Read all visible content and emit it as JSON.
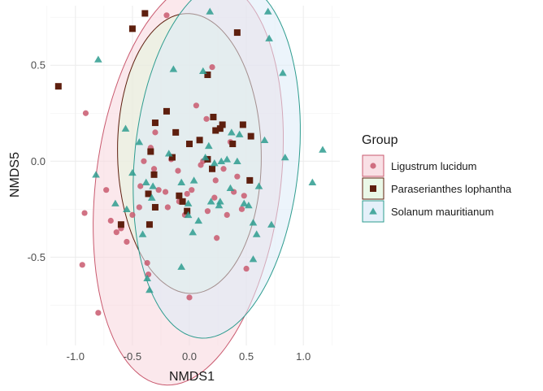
{
  "chart_data": {
    "type": "scatter",
    "xlabel": "NMDS1",
    "ylabel": "NMDS5",
    "xlim": [
      -1.22,
      1.32
    ],
    "ylim": [
      -0.96,
      0.81
    ],
    "x_ticks": [
      -1.0,
      -0.5,
      0.0,
      0.5,
      1.0
    ],
    "x_tick_labels": [
      "-1.0",
      "-0.5",
      "0.0",
      "0.5",
      "1.0"
    ],
    "y_ticks": [
      -0.5,
      0.0,
      0.5
    ],
    "y_tick_labels": [
      "-0.5",
      "0.0",
      "0.5"
    ],
    "grid": true,
    "legend": {
      "title": "Group",
      "position": "right"
    },
    "series": [
      {
        "name": "Ligustrum lucidum",
        "marker": "circle",
        "color": "#C9596E",
        "fill": "#F7D6DC",
        "ellipse": {
          "cx": -0.01,
          "cy": -0.11,
          "rx": 1.09,
          "ry": 0.79,
          "angle_deg": 69
        },
        "points": [
          [
            -0.91,
            0.25
          ],
          [
            -0.92,
            -0.27
          ],
          [
            -0.94,
            -0.54
          ],
          [
            -0.8,
            -0.79
          ],
          [
            -0.73,
            -0.15
          ],
          [
            -0.69,
            -0.31
          ],
          [
            -0.64,
            -0.37
          ],
          [
            -0.6,
            -0.35
          ],
          [
            -0.55,
            -0.42
          ],
          [
            -0.5,
            -0.28
          ],
          [
            -0.44,
            -0.24
          ],
          [
            -0.43,
            -0.13
          ],
          [
            -0.4,
            0.0
          ],
          [
            -0.37,
            -0.53
          ],
          [
            -0.36,
            -0.59
          ],
          [
            -0.34,
            0.07
          ],
          [
            -0.31,
            -0.04
          ],
          [
            -0.3,
            0.15
          ],
          [
            -0.27,
            -0.15
          ],
          [
            -0.21,
            -0.16
          ],
          [
            -0.19,
            -0.24
          ],
          [
            -0.16,
            0.01
          ],
          [
            -0.1,
            -0.05
          ],
          [
            -0.09,
            -0.21
          ],
          [
            -0.04,
            -0.28
          ],
          [
            -0.02,
            -0.17
          ],
          [
            0.0,
            -0.71
          ],
          [
            0.02,
            -0.15
          ],
          [
            0.06,
            0.29
          ],
          [
            0.1,
            -0.02
          ],
          [
            0.12,
            0.0
          ],
          [
            0.15,
            0.22
          ],
          [
            0.16,
            -0.26
          ],
          [
            0.2,
            0.49
          ],
          [
            0.22,
            -0.19
          ],
          [
            0.23,
            -0.1
          ],
          [
            0.24,
            -0.4
          ],
          [
            0.3,
            -0.04
          ],
          [
            0.33,
            -0.28
          ],
          [
            0.36,
            0.1
          ],
          [
            0.39,
            -0.16
          ],
          [
            0.42,
            -0.08
          ],
          [
            0.46,
            -0.25
          ],
          [
            0.48,
            -0.18
          ],
          [
            0.5,
            -0.56
          ],
          [
            -0.2,
            0.76
          ]
        ]
      },
      {
        "name": "Paraserianthes lophantha",
        "marker": "square",
        "color": "#5E1F0E",
        "fill": "#E3F5DF",
        "ellipse": {
          "cx": 0.0,
          "cy": 0.04,
          "rx": 0.73,
          "ry": 0.63,
          "angle_deg": 95
        },
        "points": [
          [
            -1.15,
            0.39
          ],
          [
            -0.5,
            0.69
          ],
          [
            -0.39,
            0.77
          ],
          [
            -0.6,
            -0.33
          ],
          [
            -0.35,
            -0.33
          ],
          [
            -0.36,
            -0.17
          ],
          [
            -0.3,
            -0.24
          ],
          [
            -0.34,
            0.05
          ],
          [
            -0.31,
            -0.07
          ],
          [
            -0.3,
            0.2
          ],
          [
            -0.2,
            0.26
          ],
          [
            -0.15,
            0.02
          ],
          [
            -0.12,
            0.15
          ],
          [
            -0.09,
            -0.18
          ],
          [
            -0.06,
            -0.21
          ],
          [
            -0.02,
            -0.26
          ],
          [
            0.0,
            0.09
          ],
          [
            0.09,
            0.11
          ],
          [
            0.16,
            0.45
          ],
          [
            0.21,
            0.23
          ],
          [
            0.23,
            0.16
          ],
          [
            0.16,
            0.01
          ],
          [
            0.2,
            -0.04
          ],
          [
            0.27,
            0.17
          ],
          [
            0.29,
            0.19
          ],
          [
            0.38,
            0.09
          ],
          [
            0.42,
            0.67
          ],
          [
            0.47,
            0.19
          ],
          [
            0.54,
            0.13
          ],
          [
            0.53,
            -0.1
          ]
        ]
      },
      {
        "name": "Solanum mauritianum",
        "marker": "triangle",
        "color": "#2E9C8F",
        "fill": "#DCEBF8",
        "ellipse": {
          "cx": 0.24,
          "cy": 0.01,
          "rx": 0.95,
          "ry": 0.71,
          "angle_deg": 73
        },
        "points": [
          [
            -0.8,
            0.53
          ],
          [
            -0.82,
            -0.07
          ],
          [
            -0.65,
            -0.22
          ],
          [
            -0.56,
            0.17
          ],
          [
            -0.55,
            -0.25
          ],
          [
            -0.5,
            -0.06
          ],
          [
            -0.44,
            0.1
          ],
          [
            -0.41,
            -0.38
          ],
          [
            -0.38,
            -0.11
          ],
          [
            -0.35,
            -0.67
          ],
          [
            -0.37,
            -0.61
          ],
          [
            -0.33,
            -0.19
          ],
          [
            -0.32,
            -0.13
          ],
          [
            -0.18,
            0.04
          ],
          [
            -0.14,
            0.48
          ],
          [
            -0.07,
            -0.55
          ],
          [
            -0.07,
            -0.11
          ],
          [
            -0.01,
            -0.22
          ],
          [
            -0.01,
            -0.28
          ],
          [
            0.03,
            -0.37
          ],
          [
            0.04,
            -0.1
          ],
          [
            0.08,
            -0.31
          ],
          [
            0.12,
            0.47
          ],
          [
            0.14,
            0.02
          ],
          [
            0.17,
            0.08
          ],
          [
            0.18,
            0.78
          ],
          [
            0.19,
            -0.21
          ],
          [
            0.22,
            -0.01
          ],
          [
            0.26,
            -0.23
          ],
          [
            0.27,
            -0.21
          ],
          [
            0.28,
            0.0
          ],
          [
            0.33,
            0.01
          ],
          [
            0.36,
            -0.14
          ],
          [
            0.37,
            0.15
          ],
          [
            0.42,
            0.0
          ],
          [
            0.44,
            0.14
          ],
          [
            0.48,
            -0.22
          ],
          [
            0.52,
            -0.23
          ],
          [
            0.56,
            -0.51
          ],
          [
            0.59,
            -0.38
          ],
          [
            0.61,
            -0.13
          ],
          [
            0.66,
            0.11
          ],
          [
            0.69,
            0.78
          ],
          [
            0.7,
            0.64
          ],
          [
            0.72,
            -0.33
          ],
          [
            0.82,
            0.46
          ],
          [
            0.84,
            0.02
          ],
          [
            1.08,
            -0.11
          ],
          [
            1.17,
            0.06
          ],
          [
            0.56,
            -0.32
          ]
        ]
      }
    ]
  }
}
